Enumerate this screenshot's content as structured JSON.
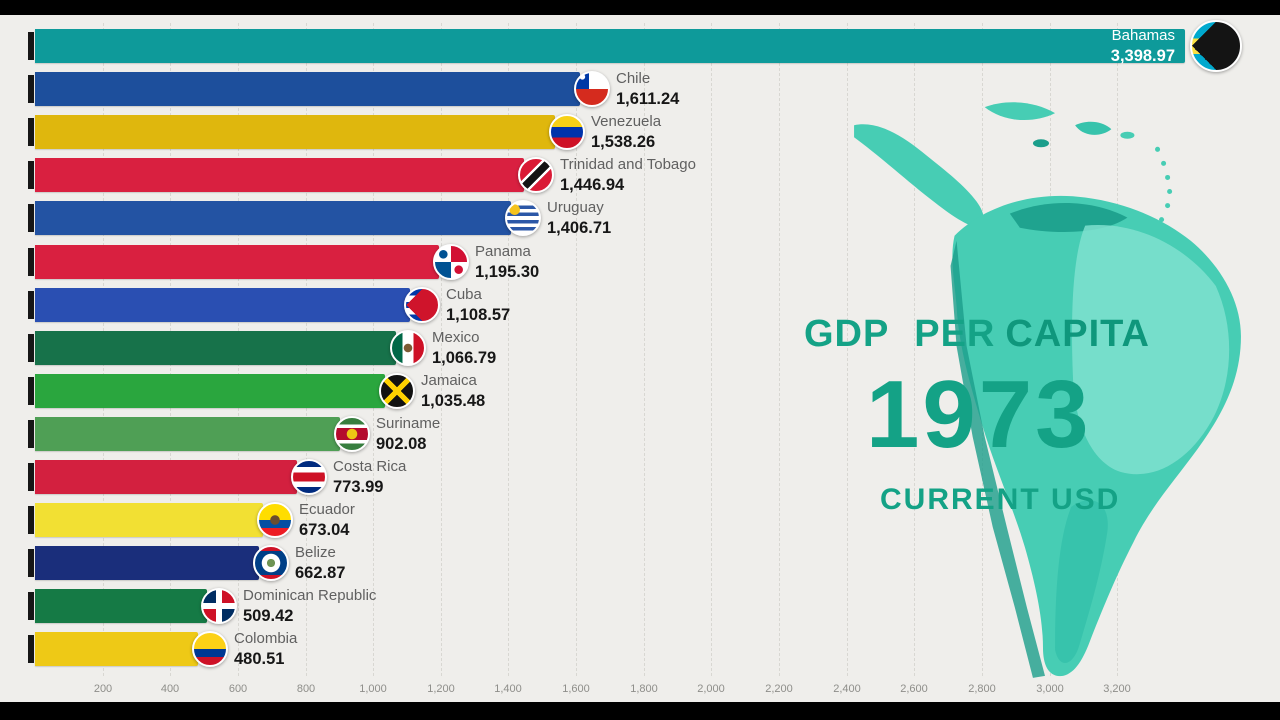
{
  "window": {
    "background": "#efeeeb",
    "letterbox_color": "#000000"
  },
  "overlay": {
    "title_left": "GDP PER",
    "title_right": "CAPITA",
    "year": "1973",
    "subtitle": "CURRENT USD",
    "accent_color": "#14a286",
    "accent_dark": "#0f977c"
  },
  "map": {
    "colors": {
      "base": "#47cdb4",
      "dark": "#1b9e8b",
      "light": "#7fe0cf",
      "mid": "#37c3ac"
    }
  },
  "chart_data": {
    "type": "bar",
    "orientation": "horizontal",
    "title": "GDP per capita",
    "year": "1973",
    "unit": "current USD",
    "categories": [
      "Bahamas",
      "Chile",
      "Venezuela",
      "Trinidad and Tobago",
      "Uruguay",
      "Panama",
      "Cuba",
      "Mexico",
      "Jamaica",
      "Suriname",
      "Costa Rica",
      "Ecuador",
      "Belize",
      "Dominican Republic",
      "Colombia"
    ],
    "values": [
      3398.97,
      1611.24,
      1538.26,
      1446.94,
      1406.71,
      1195.3,
      1108.57,
      1066.79,
      1035.48,
      902.08,
      773.99,
      673.04,
      662.87,
      509.42,
      480.51
    ],
    "xlim": [
      0,
      3400
    ],
    "x_ticks": [
      200,
      400,
      600,
      800,
      1000,
      1200,
      1400,
      1600,
      1800,
      2000,
      2200,
      2400,
      2600,
      2800,
      3000,
      3200
    ],
    "x_tick_labels": [
      "200",
      "400",
      "600",
      "800",
      "1,000",
      "1,200",
      "1,400",
      "1,600",
      "1,800",
      "2,000",
      "2,200",
      "2,400",
      "2,600",
      "2,800",
      "3,000",
      "3,200"
    ],
    "grid": true,
    "legend": false
  },
  "bars": [
    {
      "country": "Bahamas",
      "value": 3398.97,
      "value_label": "3,398.97",
      "color": "#0e9a9a",
      "flag": "flag-bahamas",
      "label_inside": true
    },
    {
      "country": "Chile",
      "value": 1611.24,
      "value_label": "1,611.24",
      "color": "#1d4f9c",
      "flag": "flag-chile"
    },
    {
      "country": "Venezuela",
      "value": 1538.26,
      "value_label": "1,538.26",
      "color": "#dfb70d",
      "flag": "flag-venezuela"
    },
    {
      "country": "Trinidad and Tobago",
      "value": 1446.94,
      "value_label": "1,446.94",
      "color": "#d92040",
      "flag": "flag-trinidad-and-tobago"
    },
    {
      "country": "Uruguay",
      "value": 1406.71,
      "value_label": "1,406.71",
      "color": "#2353a3",
      "flag": "flag-uruguay"
    },
    {
      "country": "Panama",
      "value": 1195.3,
      "value_label": "1,195.30",
      "color": "#d92040",
      "flag": "flag-panama"
    },
    {
      "country": "Cuba",
      "value": 1108.57,
      "value_label": "1,108.57",
      "color": "#2a4fb2",
      "flag": "flag-cuba"
    },
    {
      "country": "Mexico",
      "value": 1066.79,
      "value_label": "1,066.79",
      "color": "#17724a",
      "flag": "flag-mexico"
    },
    {
      "country": "Jamaica",
      "value": 1035.48,
      "value_label": "1,035.48",
      "color": "#2aa63e",
      "flag": "flag-jamaica"
    },
    {
      "country": "Suriname",
      "value": 902.08,
      "value_label": "902.08",
      "color": "#4f9f55",
      "flag": "flag-suriname"
    },
    {
      "country": "Costa Rica",
      "value": 773.99,
      "value_label": "773.99",
      "color": "#d3203f",
      "flag": "flag-costa-rica"
    },
    {
      "country": "Ecuador",
      "value": 673.04,
      "value_label": "673.04",
      "color": "#f2e033",
      "flag": "flag-ecuador"
    },
    {
      "country": "Belize",
      "value": 662.87,
      "value_label": "662.87",
      "color": "#1a2e7b",
      "flag": "flag-belize"
    },
    {
      "country": "Dominican Republic",
      "value": 509.42,
      "value_label": "509.42",
      "color": "#157a45",
      "flag": "flag-dominican-republic"
    },
    {
      "country": "Colombia",
      "value": 480.51,
      "value_label": "480.51",
      "color": "#eec916",
      "flag": "flag-colombia"
    }
  ]
}
